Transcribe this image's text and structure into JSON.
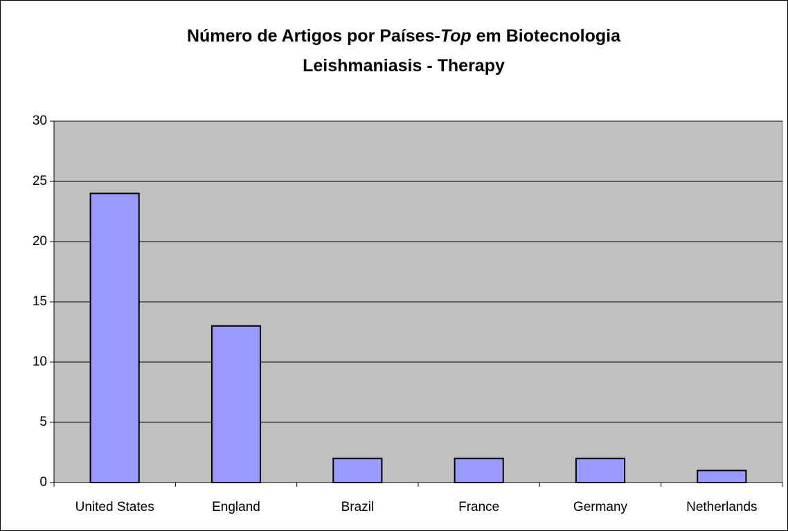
{
  "chart_data": {
    "type": "bar",
    "title": [
      [
        {
          "text": "Número de Artigos por Países-"
        },
        {
          "text": "Top",
          "italic": true
        },
        {
          "text": "  em Biotecnologia"
        }
      ],
      [
        {
          "text": "Leishmaniasis - Therapy"
        }
      ]
    ],
    "categories": [
      "United States",
      "England",
      "Brazil",
      "France",
      "Germany",
      "Netherlands"
    ],
    "values": [
      24,
      13,
      2,
      2,
      2,
      1
    ],
    "color": "#9999ff",
    "plot_background": "#c0c0c0",
    "ylim": [
      0,
      30
    ],
    "yticks": [
      0,
      5,
      10,
      15,
      20,
      25,
      30
    ],
    "grid": true
  }
}
